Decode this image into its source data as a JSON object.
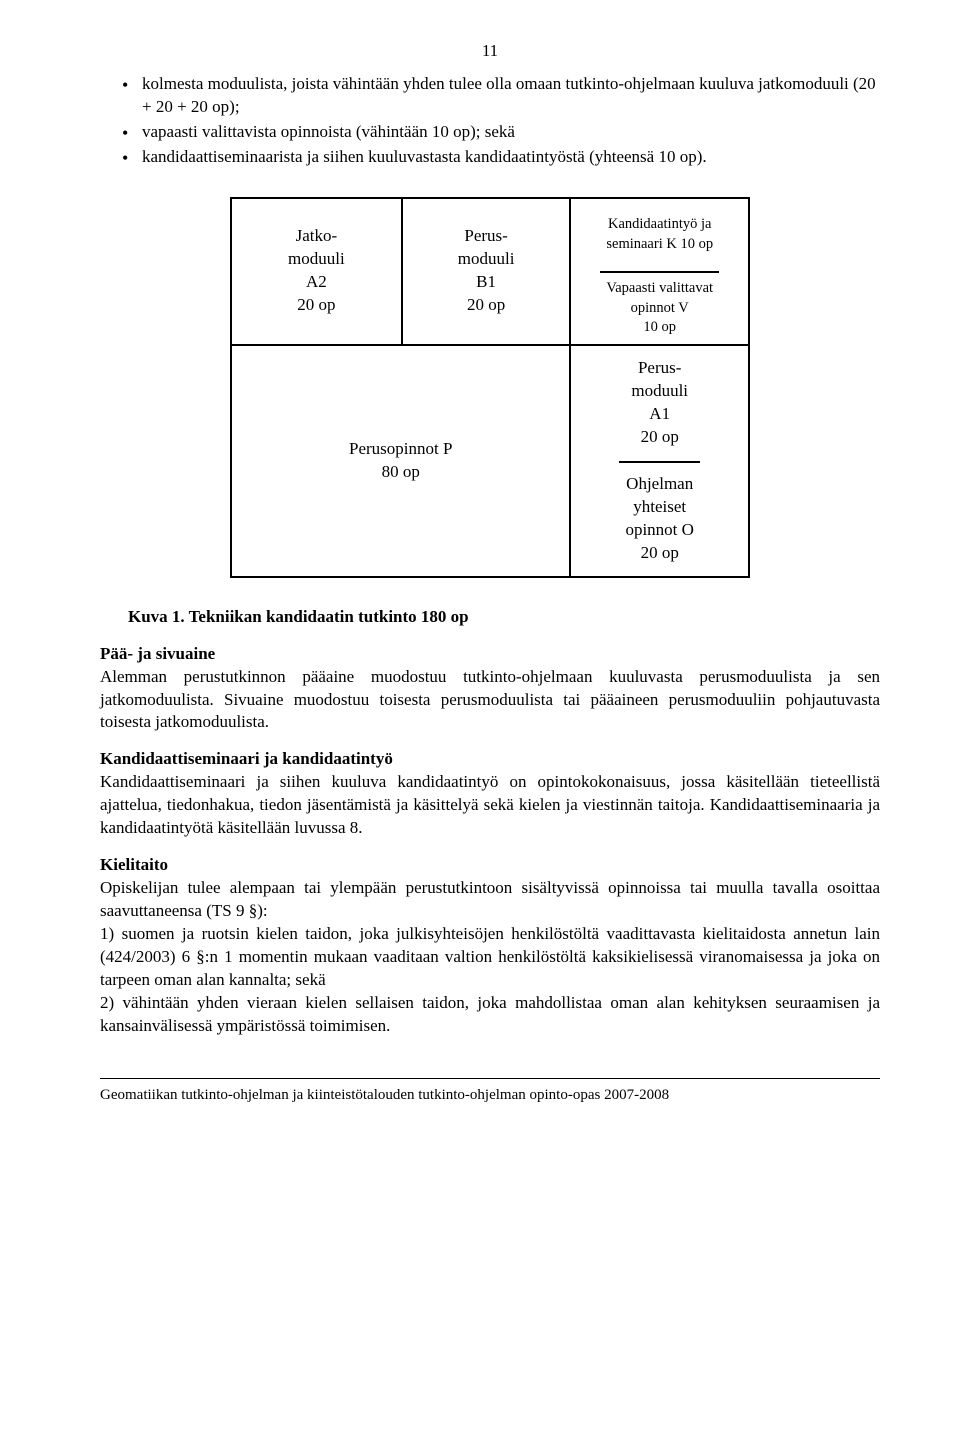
{
  "page_number": "11",
  "bullets": [
    "kolmesta moduulista, joista vähintään yhden tulee olla omaan tutkinto-ohjelmaan kuuluva jatkomoduuli (20 + 20 + 20 op);",
    "vapaasti valittavista opinnoista (vähintään 10 op); sekä",
    "kandidaattiseminaarista ja siihen kuuluvastasta kandidaatintyöstä (yhteensä 10 op)."
  ],
  "diagram": {
    "row1": {
      "a2": {
        "l1": "Jatko-",
        "l2": "moduuli",
        "l3": "A2",
        "l4": "20 op"
      },
      "b1": {
        "l1": "Perus-",
        "l2": "moduuli",
        "l3": "B1",
        "l4": "20 op"
      },
      "top_small": {
        "l1": "Kandidaatintyö ja",
        "l2": "seminaari K 10 op"
      },
      "bot_small": {
        "l1": "Vapaasti valittavat",
        "l2": "opinnot V",
        "l3": "10 op"
      }
    },
    "row2": {
      "p": {
        "l1": "Perusopinnot P",
        "l2": "80 op"
      },
      "a1": {
        "l1": "Perus-",
        "l2": "moduuli",
        "l3": "A1",
        "l4": "20 op"
      },
      "o": {
        "l1": "Ohjelman",
        "l2": "yhteiset",
        "l3": "opinnot O",
        "l4": "20 op"
      }
    }
  },
  "caption": "Kuva 1. Tekniikan kandidaatin tutkinto 180 op",
  "sect1": {
    "head": "Pää- ja sivuaine",
    "body": "Alemman perustutkinnon pääaine muodostuu tutkinto-ohjelmaan kuuluvasta perusmoduulista ja sen jatkomoduulista. Sivuaine muodostuu toisesta perusmoduulista tai pääaineen perusmoduuliin pohjautuvasta toisesta jatkomoduulista."
  },
  "sect2": {
    "head": "Kandidaattiseminaari ja kandidaatintyö",
    "body": "Kandidaattiseminaari ja siihen kuuluva kandidaatintyö on opintokokonaisuus, jossa käsitellään tieteellistä ajattelua, tiedonhakua, tiedon jäsentämistä ja käsittelyä sekä kielen ja viestinnän taitoja. Kandidaattiseminaaria ja kandidaatintyötä käsitellään luvussa 8."
  },
  "sect3": {
    "head": "Kielitaito",
    "intro": "Opiskelijan tulee alempaan tai ylempään perustutkintoon sisältyvissä opinnoissa tai muulla tavalla osoittaa saavuttaneensa (TS 9 §):",
    "item1": "1) suomen ja ruotsin kielen taidon, joka julkisyhteisöjen henkilöstöltä vaadittavasta kielitaidosta annetun lain (424/2003) 6 §:n 1 momentin mukaan vaaditaan valtion henkilöstöltä kaksikielisessä viranomaisessa ja joka on tarpeen oman alan kannalta; sekä",
    "item2": "2) vähintään yhden vieraan kielen sellaisen taidon, joka mahdollistaa oman alan kehityksen seuraamisen ja kansainvälisessä ympäristössä toimimisen."
  },
  "footer": "Geomatiikan tutkinto-ohjelman ja kiinteistötalouden tutkinto-ohjelman opinto-opas 2007-2008"
}
